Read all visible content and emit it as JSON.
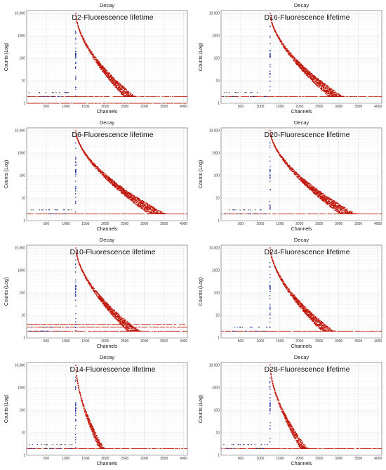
{
  "chart_data": [
    {
      "type": "scatter",
      "supertitle": "Decay",
      "title": "D2-Fluorescence lifetime",
      "xlabel": "Channels",
      "ylabel": "Counts (Log)",
      "xlim": [
        0,
        4096
      ],
      "ylim": [
        1,
        10000
      ],
      "yscale": "log",
      "xticks": [
        "500",
        "1000",
        "1500",
        "2000",
        "2500",
        "3000",
        "3500",
        "4000"
      ],
      "yticks": [
        "1",
        "10",
        "100",
        "1000",
        "10,000"
      ],
      "grid": true,
      "peak_channel": 1250,
      "peak_counts": 10000,
      "tail_end_channel": 2600,
      "baseline_counts": [
        1,
        2
      ],
      "series": [
        {
          "name": "",
          "color": "#c0180c"
        },
        {
          "name": "",
          "color": "#1f2fa3"
        }
      ]
    },
    {
      "type": "scatter",
      "supertitle": "Decay",
      "title": "D16-Fluorescence lifetime",
      "xlabel": "Channels",
      "ylabel": "Counts (Log)",
      "xlim": [
        0,
        4096
      ],
      "ylim": [
        1,
        10000
      ],
      "yscale": "log",
      "xticks": [
        "500",
        "1000",
        "1500",
        "2000",
        "2500",
        "3000",
        "3500",
        "4000"
      ],
      "yticks": [
        "1",
        "10",
        "100",
        "1000",
        "10,000"
      ],
      "grid": true,
      "peak_channel": 1250,
      "peak_counts": 10000,
      "tail_end_channel": 2900,
      "baseline_counts": [
        2
      ],
      "series": [
        {
          "name": "",
          "color": "#c0180c"
        },
        {
          "name": "",
          "color": "#1f2fa3"
        }
      ]
    },
    {
      "type": "scatter",
      "supertitle": "Decay",
      "title": "D6-Fluorescence lifetime",
      "xlabel": "Channels",
      "ylabel": "Counts (Log)",
      "xlim": [
        0,
        4096
      ],
      "ylim": [
        1,
        10000
      ],
      "yscale": "log",
      "xticks": [
        "500",
        "1000",
        "1500",
        "2000",
        "2500",
        "3000",
        "3500",
        "4000"
      ],
      "yticks": [
        "1",
        "10",
        "100",
        "1000",
        "10,000"
      ],
      "grid": true,
      "peak_channel": 1250,
      "peak_counts": 10000,
      "tail_end_channel": 3300,
      "baseline_counts": [
        2
      ],
      "series": [
        {
          "name": "",
          "color": "#c0180c"
        },
        {
          "name": "",
          "color": "#1f2fa3"
        }
      ]
    },
    {
      "type": "scatter",
      "supertitle": "Decay",
      "title": "D20-Fluorescence lifetime",
      "xlabel": "Channels",
      "ylabel": "Counts (Log)",
      "xlim": [
        0,
        4096
      ],
      "ylim": [
        1,
        10000
      ],
      "yscale": "log",
      "xticks": [
        "500",
        "1000",
        "1500",
        "2000",
        "2500",
        "3000",
        "3500",
        "4000"
      ],
      "yticks": [
        "1",
        "10",
        "100",
        "1000",
        "10,000"
      ],
      "grid": true,
      "peak_channel": 1250,
      "peak_counts": 10000,
      "tail_end_channel": 3200,
      "baseline_counts": [
        2
      ],
      "series": [
        {
          "name": "",
          "color": "#c0180c"
        },
        {
          "name": "",
          "color": "#1f2fa3"
        }
      ]
    },
    {
      "type": "scatter",
      "supertitle": "Decay",
      "title": "D10-Fluorescence lifetime",
      "xlabel": "Channels",
      "ylabel": "Counts (Log)",
      "xlim": [
        0,
        4096
      ],
      "ylim": [
        1,
        10000
      ],
      "yscale": "log",
      "xticks": [
        "500",
        "1000",
        "1500",
        "2000",
        "2500",
        "3000",
        "3500",
        "4000"
      ],
      "yticks": [
        "1",
        "10",
        "100",
        "1000",
        "10,000"
      ],
      "grid": true,
      "peak_channel": 1250,
      "peak_counts": 10000,
      "tail_end_channel": 2700,
      "baseline_counts": [
        2,
        3,
        4
      ],
      "series": [
        {
          "name": "",
          "color": "#c0180c"
        },
        {
          "name": "",
          "color": "#1f2fa3"
        }
      ]
    },
    {
      "type": "scatter",
      "supertitle": "Decay",
      "title": "D24-Fluorescence lifetime",
      "xlabel": "Channels",
      "ylabel": "Counts (Log)",
      "xlim": [
        0,
        4096
      ],
      "ylim": [
        1,
        10000
      ],
      "yscale": "log",
      "xticks": [
        "500",
        "1000",
        "1500",
        "2000",
        "2500",
        "3000",
        "3500",
        "4000"
      ],
      "yticks": [
        "1",
        "10",
        "100",
        "1000",
        "10,000"
      ],
      "grid": true,
      "peak_channel": 1250,
      "peak_counts": 10000,
      "tail_end_channel": 2700,
      "baseline_counts": [
        2
      ],
      "series": [
        {
          "name": "",
          "color": "#c0180c"
        },
        {
          "name": "",
          "color": "#1f2fa3"
        }
      ]
    },
    {
      "type": "scatter",
      "supertitle": "Decay",
      "title": "D14-Fluorescence lifetime",
      "xlabel": "Channels",
      "ylabel": "Counts (Log)",
      "xlim": [
        0,
        4096
      ],
      "ylim": [
        1,
        10000
      ],
      "yscale": "log",
      "xticks": [
        "500",
        "1000",
        "1500",
        "2000",
        "2500",
        "3000",
        "3500",
        "4000"
      ],
      "yticks": [
        "1",
        "10",
        "100",
        "1000",
        "10,000"
      ],
      "grid": true,
      "peak_channel": 1250,
      "peak_counts": 10000,
      "tail_end_channel": 1900,
      "baseline_counts": [
        2
      ],
      "series": [
        {
          "name": "",
          "color": "#c0180c"
        },
        {
          "name": "",
          "color": "#1f2fa3"
        }
      ]
    },
    {
      "type": "scatter",
      "supertitle": "Decay",
      "title": "D28-Fluorescence lifetime",
      "xlabel": "Channels",
      "ylabel": "Counts (Log)",
      "xlim": [
        0,
        4096
      ],
      "ylim": [
        1,
        10000
      ],
      "yscale": "log",
      "xticks": [
        "500",
        "1000",
        "1500",
        "2000",
        "2500",
        "3000",
        "3500",
        "4000"
      ],
      "yticks": [
        "1",
        "10",
        "100",
        "1000",
        "10,000"
      ],
      "grid": true,
      "peak_channel": 1250,
      "peak_counts": 10000,
      "tail_end_channel": 2100,
      "baseline_counts": [
        2
      ],
      "series": [
        {
          "name": "",
          "color": "#c0180c"
        },
        {
          "name": "",
          "color": "#1f2fa3"
        }
      ]
    }
  ]
}
